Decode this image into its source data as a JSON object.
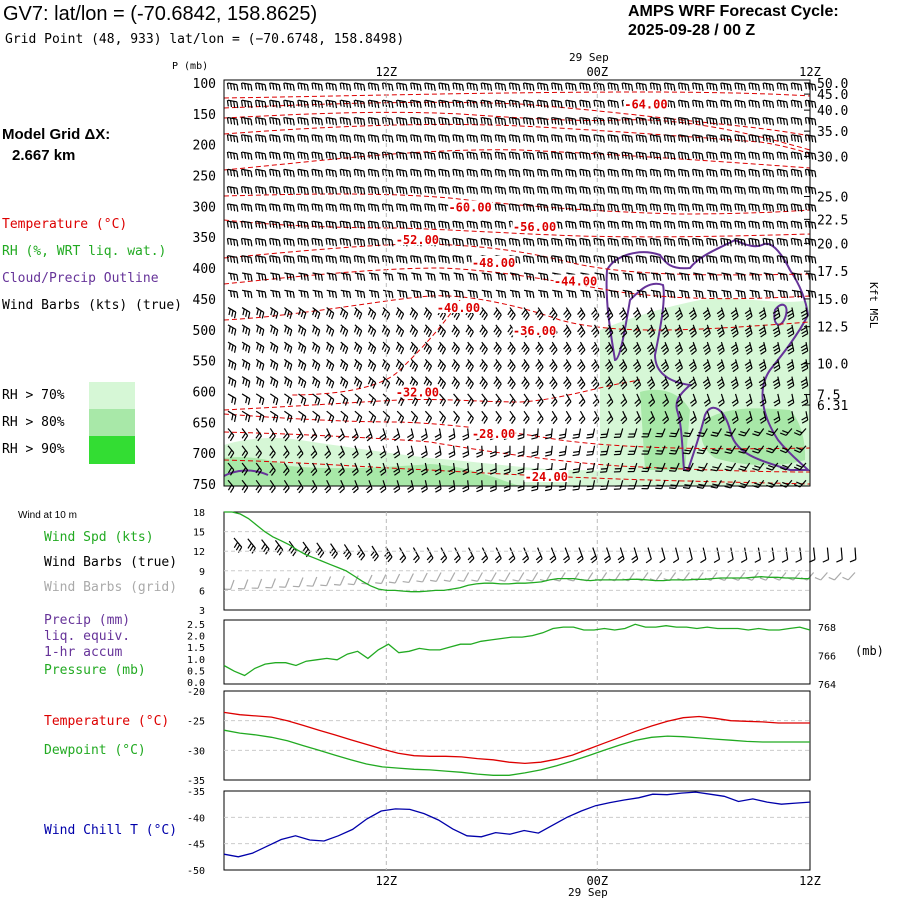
{
  "header": {
    "title": "GV7:  lat/lon = (-70.6842, 158.8625)",
    "grid_point": "Grid Point (48, 933) lat/lon = (−70.6748, 158.8498)",
    "forecast_label": "AMPS WRF Forecast Cycle:",
    "forecast_cycle": "2025-09-28 / 00  Z",
    "date_top": "29 Sep",
    "date_bottom": "29 Sep"
  },
  "sidebar": {
    "model_grid_label": "Model Grid ΔX:",
    "model_grid_value": "2.667 km",
    "temperature": "Temperature (°C)",
    "rh": "RH (%, WRT liq. wat.)",
    "cloud": "Cloud/Precip Outline",
    "wind_barbs": "Wind Barbs (kts) (true)",
    "rh_70": "RH > 70%",
    "rh_80": "RH > 80%",
    "rh_90": "RH > 90%"
  },
  "colors": {
    "temperature": "#dd0000",
    "rh": "#22aa22",
    "cloud": "#663399",
    "grey": "#aaaaaa",
    "windchill": "#0000aa",
    "rh70": "#d6f7d6",
    "rh80": "#a8e8a8",
    "rh90": "#33dd33"
  },
  "chart_data": [
    {
      "type": "heatmap",
      "title": "Time-height cross section",
      "ylabel": "P (mb)",
      "ylabel_right": "Kft MSL",
      "time_ticks": [
        "12Z",
        "00Z",
        "12Z"
      ],
      "pressure_ticks": [
        100,
        150,
        200,
        250,
        300,
        350,
        400,
        450,
        500,
        550,
        600,
        650,
        700,
        750
      ],
      "height_ticks": [
        {
          "value": "50.0",
          "p": 100
        },
        {
          "value": "45.0",
          "p": 118
        },
        {
          "value": "40.0",
          "p": 144
        },
        {
          "value": "35.0",
          "p": 178
        },
        {
          "value": "30.0",
          "p": 219
        },
        {
          "value": "25.0",
          "p": 284
        },
        {
          "value": "22.5",
          "p": 321
        },
        {
          "value": "20.0",
          "p": 360
        },
        {
          "value": "17.5",
          "p": 405
        },
        {
          "value": "15.0",
          "p": 450
        },
        {
          "value": "12.5",
          "p": 495
        },
        {
          "value": "10.0",
          "p": 555
        },
        {
          "value": "7.5",
          "p": 605
        },
        {
          "value": "6.31",
          "p": 622
        }
      ],
      "temperature_labels": [
        {
          "text": "-64.00",
          "t": 0.72,
          "p": 138
        },
        {
          "text": "-60.00",
          "t": 0.42,
          "p": 305
        },
        {
          "text": "-56.00",
          "t": 0.53,
          "p": 337
        },
        {
          "text": "-52.00",
          "t": 0.33,
          "p": 358
        },
        {
          "text": "-48.00",
          "t": 0.46,
          "p": 395
        },
        {
          "text": "-44.00",
          "t": 0.6,
          "p": 425
        },
        {
          "text": "-40.00",
          "t": 0.4,
          "p": 468
        },
        {
          "text": "-36.00",
          "t": 0.53,
          "p": 505
        },
        {
          "text": "-32.00",
          "t": 0.33,
          "p": 605
        },
        {
          "text": "-28.00",
          "t": 0.46,
          "p": 672
        },
        {
          "text": "-24.00",
          "t": 0.55,
          "p": 742
        }
      ]
    },
    {
      "type": "line",
      "title": "Wind at 10 m",
      "legend": [
        "Wind Spd (kts)",
        "Wind Barbs (true)",
        "Wind Barbs (grid)"
      ],
      "ylim": [
        3,
        18
      ],
      "y_ticks": [
        3,
        6,
        9,
        12,
        15,
        18
      ],
      "series": [
        {
          "name": "Wind Spd (kts)",
          "values": [
            18,
            18,
            17.7,
            17,
            16,
            15,
            14.2,
            13.6,
            13,
            12.2,
            11.5,
            11,
            10.5,
            10,
            9.5,
            9,
            8.2,
            7.4,
            6.7,
            6.2,
            6,
            6,
            5.9,
            5.8,
            5.8,
            5.9,
            6,
            6,
            6.2,
            6.4,
            6.8,
            7,
            7.1,
            7.1,
            7,
            7,
            7.1,
            7.1,
            7.2,
            7.3,
            7.6,
            7.8,
            7.8,
            7.8,
            7.6,
            7.5,
            7.6,
            7.6,
            7.6,
            7.6,
            7.7,
            7.7,
            7.6,
            7.5,
            7.5,
            7.6,
            7.6,
            7.6,
            7.7,
            7.7,
            7.8,
            7.9,
            7.9,
            7.9,
            7.9,
            8,
            8.1,
            8,
            8,
            7.9,
            7.9,
            7.8,
            7.8
          ]
        }
      ]
    },
    {
      "type": "line",
      "title": "Precip / Pressure",
      "legend": [
        "Precip (mm)",
        "liq. equiv.",
        "1-hr accum",
        "Pressure (mb)"
      ],
      "y_ticks_left": [
        "0.0",
        "0.5",
        "1.0",
        "1.5",
        "2.0",
        "2.5"
      ],
      "y_ticks_right": [
        "764",
        "766",
        "768"
      ],
      "unit_right": "(mb)",
      "ylim_right": [
        764,
        768.5
      ],
      "series": [
        {
          "name": "Pressure (mb)",
          "values": [
            765.3,
            764.9,
            764.6,
            765.1,
            765.4,
            765.5,
            765.5,
            765.3,
            765.6,
            765.7,
            765.8,
            765.7,
            766.1,
            766.3,
            765.8,
            766.4,
            766.8,
            766.2,
            766.3,
            766.5,
            766.4,
            766.4,
            766.6,
            766.8,
            766.8,
            767.0,
            767.1,
            767.2,
            767.3,
            767.3,
            767.4,
            767.6,
            767.9,
            768.0,
            768.0,
            767.8,
            767.8,
            767.9,
            767.8,
            767.9,
            768.2,
            768.0,
            768.0,
            768.1,
            768.0,
            768.0,
            767.9,
            768.0,
            767.9,
            767.9,
            767.9,
            767.8,
            767.9,
            767.8,
            767.8,
            767.9,
            768.0,
            767.8
          ]
        }
      ]
    },
    {
      "type": "line",
      "title": "Temperature / Dewpoint",
      "legend": [
        "Temperature (°C)",
        "Dewpoint (°C)"
      ],
      "ylim": [
        -35,
        -20
      ],
      "y_ticks": [
        -35,
        -30,
        -25,
        -20
      ],
      "series": [
        {
          "name": "Temperature (°C)",
          "values": [
            -23.6,
            -24.0,
            -24.2,
            -24.4,
            -25.0,
            -25.8,
            -26.6,
            -27.4,
            -28.2,
            -29.0,
            -29.8,
            -30.5,
            -30.9,
            -31.0,
            -31.0,
            -31.1,
            -31.4,
            -31.6,
            -32.0,
            -32.2,
            -32.0,
            -31.5,
            -30.8,
            -29.8,
            -28.8,
            -27.8,
            -26.8,
            -25.9,
            -25.1,
            -24.5,
            -24.3,
            -24.6,
            -25.0,
            -25.1,
            -25.2,
            -25.4,
            -25.4,
            -25.4
          ]
        },
        {
          "name": "Dewpoint (°C)",
          "values": [
            -26.6,
            -27.1,
            -27.4,
            -27.8,
            -28.4,
            -29.2,
            -30.0,
            -30.8,
            -31.6,
            -32.3,
            -32.8,
            -33.0,
            -33.2,
            -33.3,
            -33.5,
            -33.7,
            -34.0,
            -34.2,
            -34.2,
            -33.8,
            -33.3,
            -32.6,
            -31.8,
            -30.9,
            -30.0,
            -29.1,
            -28.3,
            -27.8,
            -27.6,
            -27.7,
            -27.9,
            -28.1,
            -28.3,
            -28.5,
            -28.6,
            -28.6,
            -28.6,
            -28.6
          ]
        }
      ]
    },
    {
      "type": "line",
      "title": "Wind Chill",
      "legend": [
        "Wind Chill T (°C)"
      ],
      "ylim": [
        -50,
        -35
      ],
      "y_ticks": [
        -50,
        -45,
        -40,
        -35
      ],
      "series": [
        {
          "name": "Wind Chill T (°C)",
          "values": [
            -47.0,
            -47.5,
            -46.8,
            -45.5,
            -44.2,
            -43.5,
            -44.3,
            -44.5,
            -43.5,
            -42.3,
            -40.3,
            -38.8,
            -38.4,
            -38.5,
            -39.3,
            -40.5,
            -42.2,
            -43.5,
            -43.7,
            -42.9,
            -43.2,
            -42.5,
            -43.0,
            -41.5,
            -40.0,
            -38.8,
            -37.8,
            -37.2,
            -36.7,
            -36.3,
            -35.6,
            -35.7,
            -35.4,
            -35.2,
            -35.6,
            -36.0,
            -37.0,
            -36.5,
            -37.1,
            -37.5,
            -37.3,
            -37.1
          ]
        }
      ]
    }
  ]
}
